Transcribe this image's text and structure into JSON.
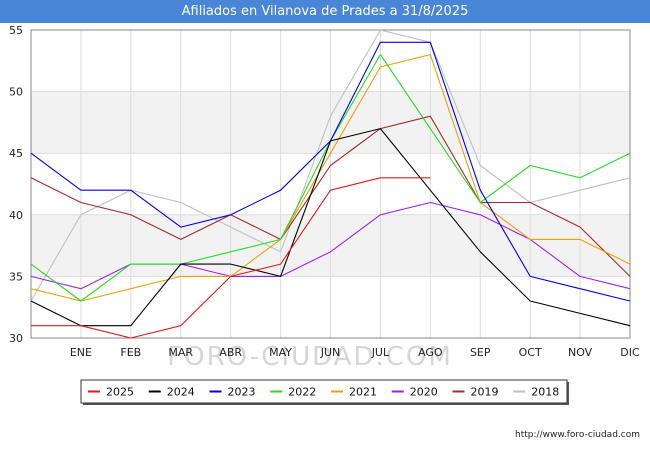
{
  "title": "Afiliados en Vilanova de Prades a 31/8/2025",
  "watermark": "FORO-CIUDAD.COM",
  "source": "http://www.foro-ciudad.com",
  "chart_data": {
    "type": "line",
    "title": "Afiliados en Vilanova de Prades a 31/8/2025",
    "categories": [
      "",
      "ENE",
      "FEB",
      "MAR",
      "ABR",
      "MAY",
      "JUN",
      "JUL",
      "AGO",
      "SEP",
      "OCT",
      "NOV",
      "DIC"
    ],
    "ylim": [
      30,
      55
    ],
    "yticks": [
      30,
      35,
      40,
      45,
      50,
      55
    ],
    "grid": true,
    "legend_position": "bottom",
    "series": [
      {
        "name": "2025",
        "color": "#e31a1c",
        "values": [
          31,
          31,
          30,
          31,
          35,
          36,
          42,
          43,
          43,
          null,
          null,
          null,
          null
        ]
      },
      {
        "name": "2024",
        "color": "#000000",
        "values": [
          33,
          31,
          31,
          36,
          36,
          35,
          46,
          47,
          42,
          37,
          33,
          32,
          31
        ]
      },
      {
        "name": "2023",
        "color": "#0000ee",
        "values": [
          45,
          42,
          42,
          39,
          40,
          42,
          46,
          54,
          54,
          42,
          35,
          34,
          33
        ]
      },
      {
        "name": "2022",
        "color": "#22dd22",
        "values": [
          36,
          33,
          36,
          36,
          37,
          38,
          46,
          53,
          47,
          41,
          44,
          43,
          45
        ]
      },
      {
        "name": "2021",
        "color": "#f0a000",
        "values": [
          34,
          33,
          34,
          35,
          35,
          38,
          45,
          52,
          53,
          41,
          38,
          38,
          36
        ]
      },
      {
        "name": "2020",
        "color": "#a020f0",
        "values": [
          35,
          34,
          36,
          36,
          35,
          35,
          37,
          40,
          41,
          40,
          38,
          35,
          34
        ]
      },
      {
        "name": "2019",
        "color": "#a52a2a",
        "values": [
          43,
          41,
          40,
          38,
          40,
          38,
          44,
          47,
          48,
          41,
          41,
          39,
          35
        ]
      },
      {
        "name": "2018",
        "color": "#c0c0c0",
        "values": [
          33,
          40,
          42,
          41,
          39,
          37,
          48,
          55,
          54,
          44,
          41,
          42,
          43
        ]
      }
    ]
  }
}
